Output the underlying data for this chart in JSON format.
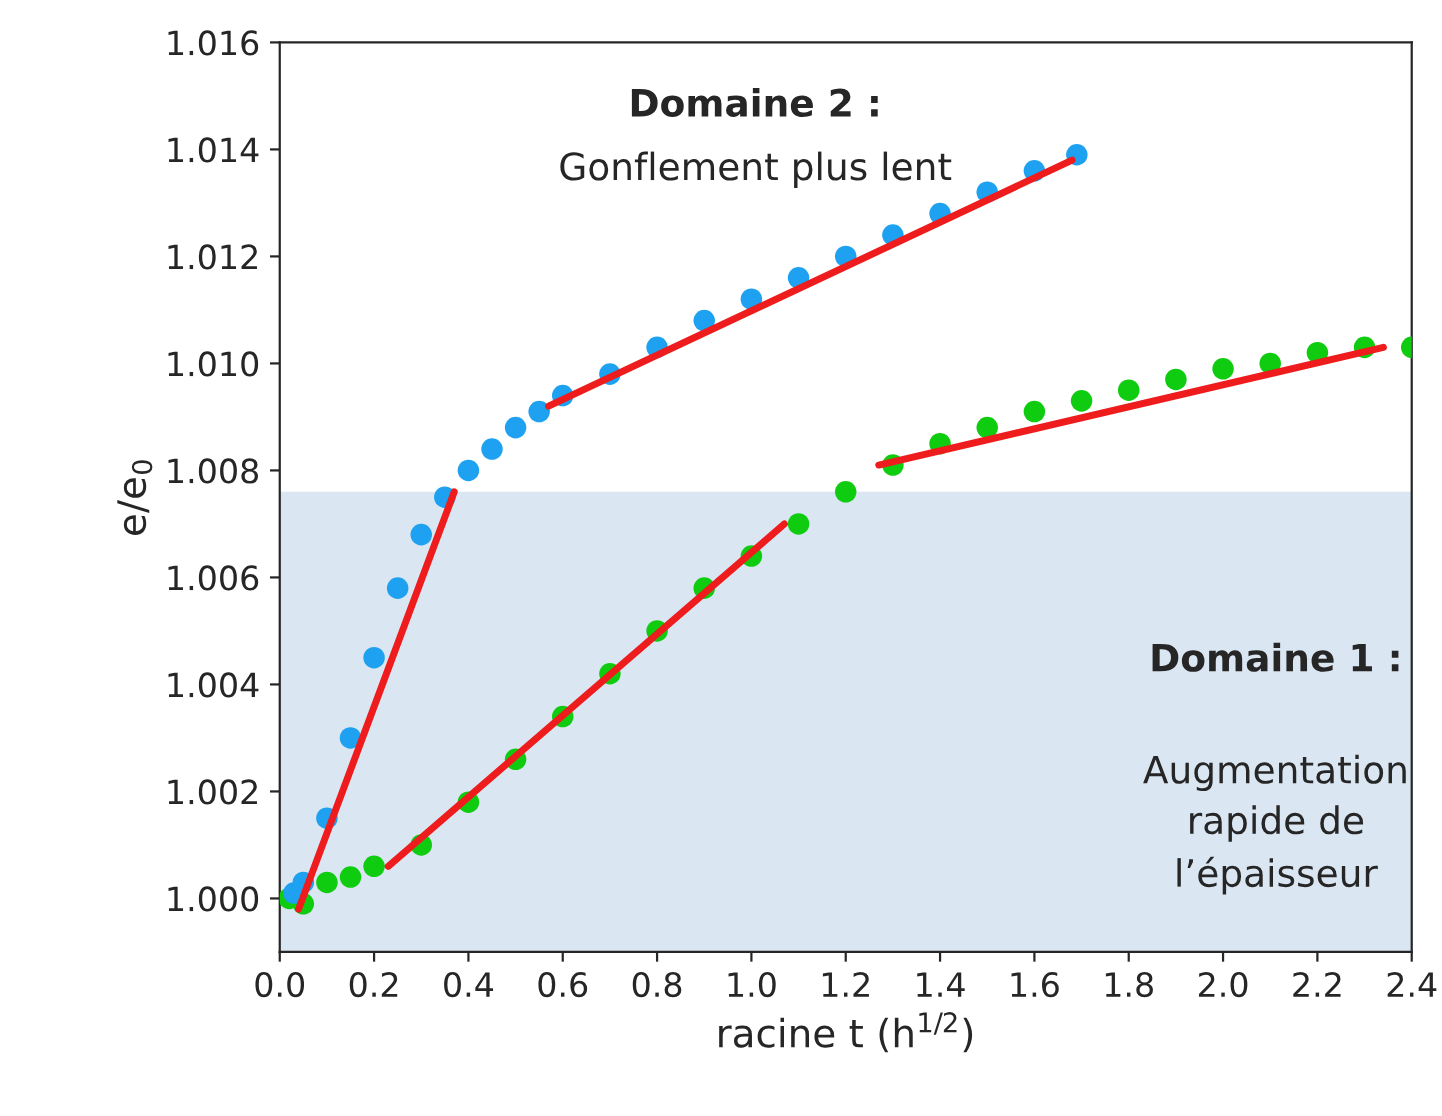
{
  "chart_data": {
    "type": "scatter",
    "xlabel": "racine t (h$^{1/2}$)",
    "ylabel": "e/e$_{0}$",
    "xlim": [
      0,
      2.4
    ],
    "ylim": [
      0.999,
      1.016
    ],
    "xticks": [
      {
        "value": 0,
        "label": "0.0"
      },
      {
        "value": 0.2,
        "label": "0.2"
      },
      {
        "value": 0.4,
        "label": "0.4"
      },
      {
        "value": 0.6,
        "label": "0.6"
      },
      {
        "value": 0.8,
        "label": "0.8"
      },
      {
        "value": 1.0,
        "label": "1.0"
      },
      {
        "value": 1.2,
        "label": "1.2"
      },
      {
        "value": 1.4,
        "label": "1.4"
      },
      {
        "value": 1.6,
        "label": "1.6"
      },
      {
        "value": 1.8,
        "label": "1.8"
      },
      {
        "value": 2.0,
        "label": "2.0"
      },
      {
        "value": 2.2,
        "label": "2.2"
      },
      {
        "value": 2.4,
        "label": "2.4"
      }
    ],
    "yticks": [
      {
        "value": 1.0,
        "label": "1.000"
      },
      {
        "value": 1.002,
        "label": "1.002"
      },
      {
        "value": 1.004,
        "label": "1.004"
      },
      {
        "value": 1.006,
        "label": "1.006"
      },
      {
        "value": 1.008,
        "label": "1.008"
      },
      {
        "value": 1.01,
        "label": "1.010"
      },
      {
        "value": 1.012,
        "label": "1.012"
      },
      {
        "value": 1.014,
        "label": "1.014"
      },
      {
        "value": 1.016,
        "label": "1.016"
      }
    ],
    "grid": false,
    "legend": false,
    "bands": [
      {
        "axis": "y",
        "from": 0.999,
        "to": 1.0076,
        "color": "#dae6f2"
      }
    ],
    "series": [
      {
        "marker": "circle",
        "color": "#1ea1f0",
        "x": [
          0.03,
          0.05,
          0.1,
          0.15,
          0.2,
          0.25,
          0.3,
          0.35,
          0.4,
          0.45,
          0.5,
          0.55,
          0.6,
          0.7,
          0.8,
          0.9,
          1.0,
          1.1,
          1.2,
          1.3,
          1.4,
          1.5,
          1.6,
          1.69
        ],
        "values": [
          1.0001,
          1.0003,
          1.0015,
          1.003,
          1.0045,
          1.0058,
          1.0068,
          1.0075,
          1.008,
          1.0084,
          1.0088,
          1.0091,
          1.0094,
          1.0098,
          1.0103,
          1.0108,
          1.0112,
          1.0116,
          1.012,
          1.0124,
          1.0128,
          1.0132,
          1.0136,
          1.0139
        ]
      },
      {
        "marker": "circle",
        "color": "#10cc10",
        "x": [
          0.02,
          0.05,
          0.1,
          0.15,
          0.2,
          0.3,
          0.4,
          0.5,
          0.6,
          0.7,
          0.8,
          0.9,
          1.0,
          1.1,
          1.2,
          1.3,
          1.4,
          1.5,
          1.6,
          1.7,
          1.8,
          1.9,
          2.0,
          2.1,
          2.2,
          2.3,
          2.4
        ],
        "values": [
          1.0,
          0.9999,
          1.0003,
          1.0004,
          1.0006,
          1.001,
          1.0018,
          1.0026,
          1.0034,
          1.0042,
          1.005,
          1.0058,
          1.0064,
          1.007,
          1.0076,
          1.0081,
          1.0085,
          1.0088,
          1.0091,
          1.0093,
          1.0095,
          1.0097,
          1.0099,
          1.01,
          1.0102,
          1.0103,
          1.0103
        ]
      },
      {
        "type": "line",
        "color": "#ee1c1c",
        "x": [
          0.04,
          0.37
        ],
        "values": [
          0.9998,
          1.0076
        ]
      },
      {
        "type": "line",
        "color": "#ee1c1c",
        "x": [
          0.57,
          1.68
        ],
        "values": [
          1.0092,
          1.0138
        ]
      },
      {
        "type": "line",
        "color": "#ee1c1c",
        "x": [
          0.23,
          1.07
        ],
        "values": [
          1.0006,
          1.007
        ]
      },
      {
        "type": "line",
        "color": "#ee1c1c",
        "x": [
          1.27,
          2.34
        ],
        "values": [
          1.0081,
          1.0103
        ]
      }
    ],
    "annotations": [
      "Domaine 2 :",
      "Gonflement plus lent",
      "Domaine 1 :",
      "Augmentation\nrapide de\nl’épaisseur"
    ]
  }
}
